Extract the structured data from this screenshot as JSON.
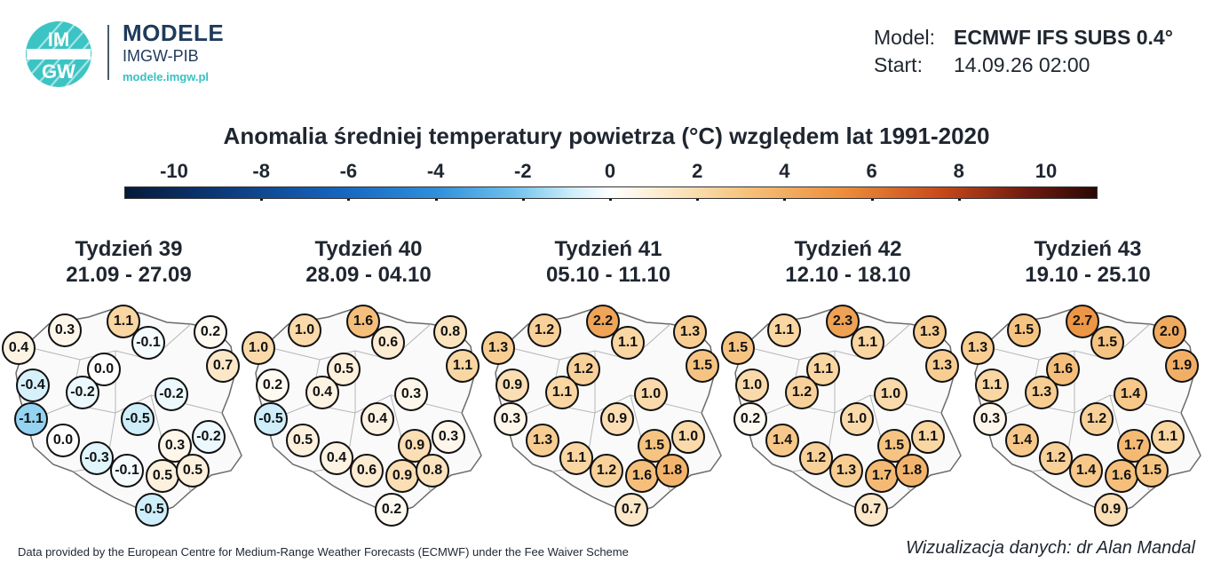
{
  "brand": {
    "logo_text": "IMGW",
    "title": "MODELE",
    "subtitle": "IMGW-PIB",
    "url": "modele.imgw.pl"
  },
  "model": {
    "model_label": "Model:",
    "model_value": "ECMWF IFS SUBS 0.4°",
    "start_label": "Start:",
    "start_value": "14.09.26 02:00"
  },
  "title": "Anomalia średniej temperatury powietrza (°C) względem lat 1991-2020",
  "colorbar": {
    "ticks": [
      "-10",
      "-8",
      "-6",
      "-4",
      "-2",
      "0",
      "2",
      "4",
      "6",
      "8",
      "10"
    ],
    "min": -10,
    "max": 10
  },
  "weeks": [
    {
      "title": "Tydzień 39",
      "dates": "21.09 - 27.09",
      "values": [
        "0.3",
        "1.1",
        "0.2",
        "0.4",
        "-0.1",
        "0.0",
        "0.7",
        "-0.4",
        "-0.2",
        "-0.2",
        "-1.1",
        "-0.5",
        "0.0",
        "0.3",
        "-0.2",
        "-0.3",
        "-0.1",
        "0.5",
        "0.5",
        "-0.5"
      ]
    },
    {
      "title": "Tydzień 40",
      "dates": "28.09 - 04.10",
      "values": [
        "1.0",
        "1.6",
        "0.8",
        "1.0",
        "0.6",
        "0.5",
        "1.1",
        "0.2",
        "0.4",
        "0.3",
        "-0.5",
        "0.4",
        "0.5",
        "0.9",
        "0.3",
        "0.4",
        "0.6",
        "0.9",
        "0.8",
        "0.2"
      ]
    },
    {
      "title": "Tydzień 41",
      "dates": "05.10 - 11.10",
      "values": [
        "1.2",
        "2.2",
        "1.3",
        "1.3",
        "1.1",
        "1.2",
        "1.5",
        "0.9",
        "1.1",
        "1.0",
        "0.3",
        "0.9",
        "1.3",
        "1.5",
        "1.0",
        "1.1",
        "1.2",
        "1.6",
        "1.8",
        "0.7"
      ]
    },
    {
      "title": "Tydzień 42",
      "dates": "12.10 - 18.10",
      "values": [
        "1.1",
        "2.3",
        "1.3",
        "1.5",
        "1.1",
        "1.1",
        "1.3",
        "1.0",
        "1.2",
        "1.0",
        "0.2",
        "1.0",
        "1.4",
        "1.5",
        "1.1",
        "1.2",
        "1.3",
        "1.7",
        "1.8",
        "0.7"
      ]
    },
    {
      "title": "Tydzień 43",
      "dates": "19.10 - 25.10",
      "values": [
        "1.5",
        "2.7",
        "2.0",
        "1.3",
        "1.5",
        "1.6",
        "1.9",
        "1.1",
        "1.3",
        "1.4",
        "0.3",
        "1.2",
        "1.4",
        "1.7",
        "1.1",
        "1.2",
        "1.4",
        "1.6",
        "1.5",
        "0.9"
      ]
    }
  ],
  "footer": {
    "left": "Data provided by the European Centre for Medium-Range Weather Forecasts (ECMWF) under the Fee Waiver Scheme",
    "right": "Wizualizacja danych: dr Alan Mandal"
  }
}
